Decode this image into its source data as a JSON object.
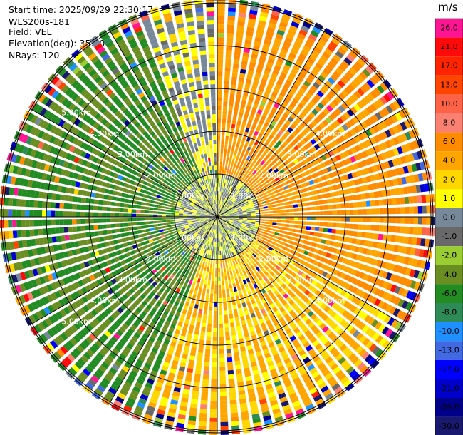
{
  "info": {
    "start_time": "Start time: 2025/09/29 22:30:17",
    "instrument": "WLS200s-181",
    "field": "Field: VEL",
    "elevation": "Elevation(deg): 35.00",
    "nrays": "NRays: 120"
  },
  "colorbar": {
    "unit": "m/s",
    "ticks": [
      "26.0",
      "21.0",
      "17.0",
      "13.0",
      "10.0",
      "8.0",
      "6.0",
      "4.0",
      "2.0",
      "1.0",
      "0.0",
      "-1.0",
      "-2.0",
      "-4.0",
      "-6.0",
      "-8.0",
      "-10.0",
      "-13.0",
      "-17.0",
      "-21.0",
      "-26.0",
      "-30.0"
    ],
    "colors": [
      "#ff1493",
      "#ff0a0a",
      "#ff2400",
      "#ff4500",
      "#ff6347",
      "#fa8072",
      "#ff8c00",
      "#ffa500",
      "#ffd700",
      "#ffff00",
      "#778899",
      "#696969",
      "#9acd32",
      "#6b8e23",
      "#228b22",
      "#2e8b57",
      "#1e90ff",
      "#4169e1",
      "#0000ff",
      "#0000cd",
      "#00008b",
      "#191970"
    ]
  },
  "chart_data": {
    "type": "heatmap",
    "projection": "polar PPI",
    "field": "VEL",
    "units": "m/s",
    "rays": 120,
    "range_rings_km": [
      1,
      2,
      3,
      4,
      5
    ],
    "ring_labels": [
      "1.00km",
      "2.00km",
      "3.00km",
      "4.00km",
      "5.00km"
    ],
    "sectors": [
      {
        "az_from": 0,
        "az_to": 120,
        "dominant_velocity": 4.0
      },
      {
        "az_from": 120,
        "az_to": 200,
        "dominant_velocity": 2.0
      },
      {
        "az_from": 200,
        "az_to": 340,
        "dominant_velocity": -6.0
      },
      {
        "az_from": 340,
        "az_to": 360,
        "dominant_velocity": 0.0
      }
    ],
    "near_range_values": [
      1.0,
      0.0,
      -1.0,
      -2.0
    ],
    "far_range_noise": "mixed"
  }
}
